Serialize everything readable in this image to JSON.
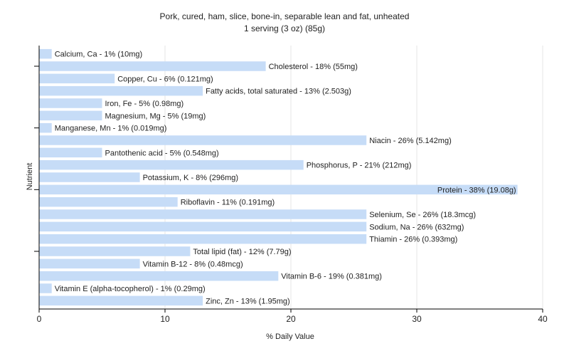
{
  "chart_data": {
    "type": "bar",
    "orientation": "horizontal",
    "title": "Pork, cured, ham, slice, bone-in, separable lean and fat, unheated",
    "subtitle": "1 serving (3 oz) (85g)",
    "xlabel": "% Daily Value",
    "ylabel": "Nutrient",
    "xlim": [
      0,
      40
    ],
    "xticks": [
      0,
      10,
      20,
      30,
      40
    ],
    "grid": true,
    "bar_color": "#c6dcf7",
    "categories": [
      "Calcium, Ca",
      "Cholesterol",
      "Copper, Cu",
      "Fatty acids, total saturated",
      "Iron, Fe",
      "Magnesium, Mg",
      "Manganese, Mn",
      "Niacin",
      "Pantothenic acid",
      "Phosphorus, P",
      "Potassium, K",
      "Protein",
      "Riboflavin",
      "Selenium, Se",
      "Sodium, Na",
      "Thiamin",
      "Total lipid (fat)",
      "Vitamin B-12",
      "Vitamin B-6",
      "Vitamin E (alpha-tocopherol)",
      "Zinc, Zn"
    ],
    "values": [
      1,
      18,
      6,
      13,
      5,
      5,
      1,
      26,
      5,
      21,
      8,
      38,
      11,
      26,
      26,
      26,
      12,
      8,
      19,
      1,
      13
    ],
    "labels": [
      "Calcium, Ca - 1% (10mg)",
      "Cholesterol - 18% (55mg)",
      "Copper, Cu - 6% (0.121mg)",
      "Fatty acids, total saturated - 13% (2.503g)",
      "Iron, Fe - 5% (0.98mg)",
      "Magnesium, Mg - 5% (19mg)",
      "Manganese, Mn - 1% (0.019mg)",
      "Niacin - 26% (5.142mg)",
      "Pantothenic acid - 5% (0.548mg)",
      "Phosphorus, P - 21% (212mg)",
      "Potassium, K - 8% (296mg)",
      "Protein - 38% (19.08g)",
      "Riboflavin - 11% (0.191mg)",
      "Selenium, Se - 26% (18.3mcg)",
      "Sodium, Na - 26% (632mg)",
      "Thiamin - 26% (0.393mg)",
      "Total lipid (fat) - 12% (7.79g)",
      "Vitamin B-12 - 8% (0.48mcg)",
      "Vitamin B-6 - 19% (0.381mg)",
      "Vitamin E (alpha-tocopherol) - 1% (0.29mg)",
      "Zinc, Zn - 13% (1.95mg)"
    ]
  }
}
